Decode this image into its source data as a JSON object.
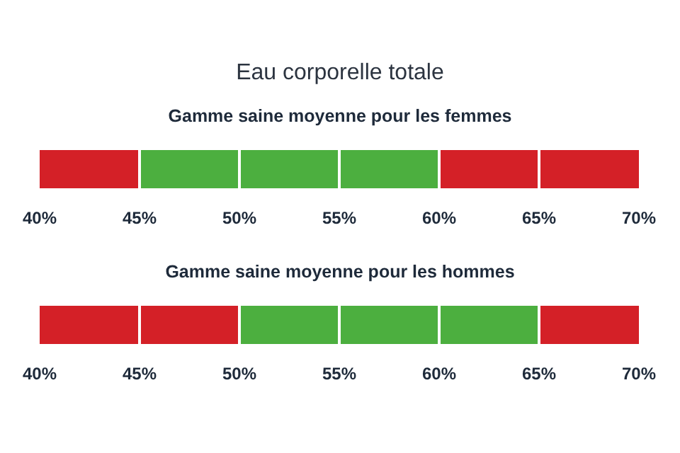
{
  "chart_data": [
    {
      "type": "bar",
      "title": "Eau corporelle totale",
      "subtitle": "Gamme saine moyenne pour les femmes",
      "orientation": "horizontal",
      "categories": [
        null
      ],
      "series": [
        {
          "color": "#d42027",
          "base": [
            40
          ],
          "values": [
            5
          ]
        },
        {
          "color": "#4caf3f",
          "base": [
            45
          ],
          "values": [
            5
          ]
        },
        {
          "color": "#4caf3f",
          "base": [
            50
          ],
          "values": [
            5
          ]
        },
        {
          "color": "#4caf3f",
          "base": [
            55
          ],
          "values": [
            5
          ]
        },
        {
          "color": "#d42027",
          "base": [
            60
          ],
          "values": [
            5
          ]
        },
        {
          "color": "#d42027",
          "base": [
            65
          ],
          "values": [
            5
          ]
        }
      ],
      "xlim": [
        40,
        70
      ],
      "xticks": [
        {
          "value": 40,
          "label": "40%"
        },
        {
          "value": 45,
          "label": "45%"
        },
        {
          "value": 50,
          "label": "50%"
        },
        {
          "value": 55,
          "label": "55%"
        },
        {
          "value": 60,
          "label": "60%"
        },
        {
          "value": 65,
          "label": "65%"
        },
        {
          "value": 70,
          "label": "70%"
        }
      ]
    },
    {
      "type": "bar",
      "subtitle": "Gamme saine moyenne pour les hommes",
      "orientation": "horizontal",
      "categories": [
        null
      ],
      "series": [
        {
          "color": "#d42027",
          "base": [
            40
          ],
          "values": [
            5
          ]
        },
        {
          "color": "#d42027",
          "base": [
            45
          ],
          "values": [
            5
          ]
        },
        {
          "color": "#4caf3f",
          "base": [
            50
          ],
          "values": [
            5
          ]
        },
        {
          "color": "#4caf3f",
          "base": [
            55
          ],
          "values": [
            5
          ]
        },
        {
          "color": "#4caf3f",
          "base": [
            60
          ],
          "values": [
            5
          ]
        },
        {
          "color": "#d42027",
          "base": [
            65
          ],
          "values": [
            5
          ]
        }
      ],
      "xlim": [
        40,
        70
      ],
      "xticks": [
        {
          "value": 40,
          "label": "40%"
        },
        {
          "value": 45,
          "label": "45%"
        },
        {
          "value": 50,
          "label": "50%"
        },
        {
          "value": 55,
          "label": "55%"
        },
        {
          "value": 60,
          "label": "60%"
        },
        {
          "value": 65,
          "label": "65%"
        },
        {
          "value": 70,
          "label": "70%"
        }
      ]
    }
  ]
}
